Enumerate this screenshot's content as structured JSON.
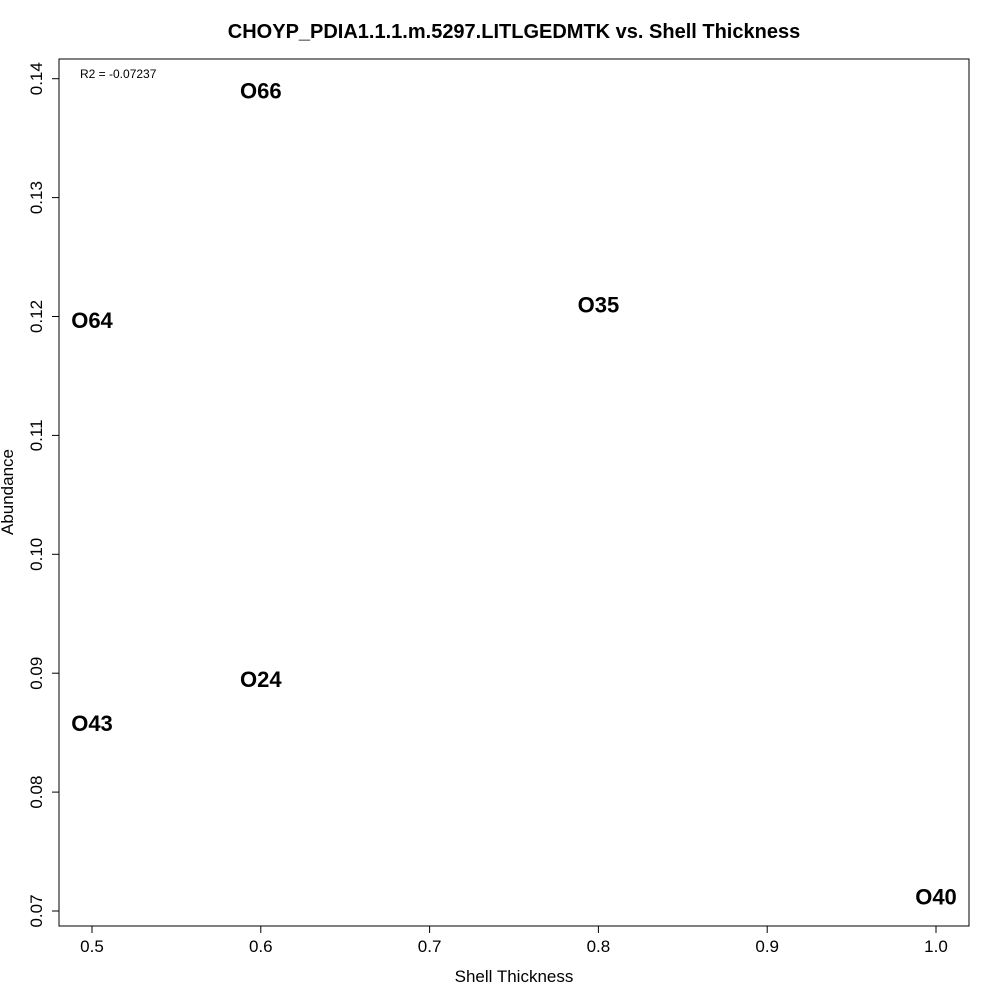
{
  "chart_data": {
    "type": "scatter",
    "title": "CHOYP_PDIA1.1.1.m.5297.LITLGEDMTK vs. Shell Thickness",
    "xlabel": "Shell Thickness",
    "ylabel": "Abundance",
    "xlim": [
      0.5,
      1.0
    ],
    "ylim": [
      0.07,
      0.14
    ],
    "x_ticks": [
      0.5,
      0.6,
      0.7,
      0.8,
      0.9,
      1.0
    ],
    "x_tick_labels": [
      "0.5",
      "0.6",
      "0.7",
      "0.8",
      "0.9",
      "1.0"
    ],
    "y_ticks": [
      0.07,
      0.08,
      0.09,
      0.1,
      0.11,
      0.12,
      0.13,
      0.14
    ],
    "y_tick_labels": [
      "0.07",
      "0.08",
      "0.09",
      "0.10",
      "0.11",
      "0.12",
      "0.13",
      "0.14"
    ],
    "annotation": "R2 = -0.07237",
    "grid": false,
    "legend": "none",
    "points": [
      {
        "label": "O66",
        "x": 0.6,
        "y": 0.139
      },
      {
        "label": "O64",
        "x": 0.5,
        "y": 0.1197
      },
      {
        "label": "O35",
        "x": 0.8,
        "y": 0.121
      },
      {
        "label": "O24",
        "x": 0.6,
        "y": 0.0895
      },
      {
        "label": "O43",
        "x": 0.5,
        "y": 0.0858
      },
      {
        "label": "O40",
        "x": 1.0,
        "y": 0.0712
      }
    ]
  }
}
